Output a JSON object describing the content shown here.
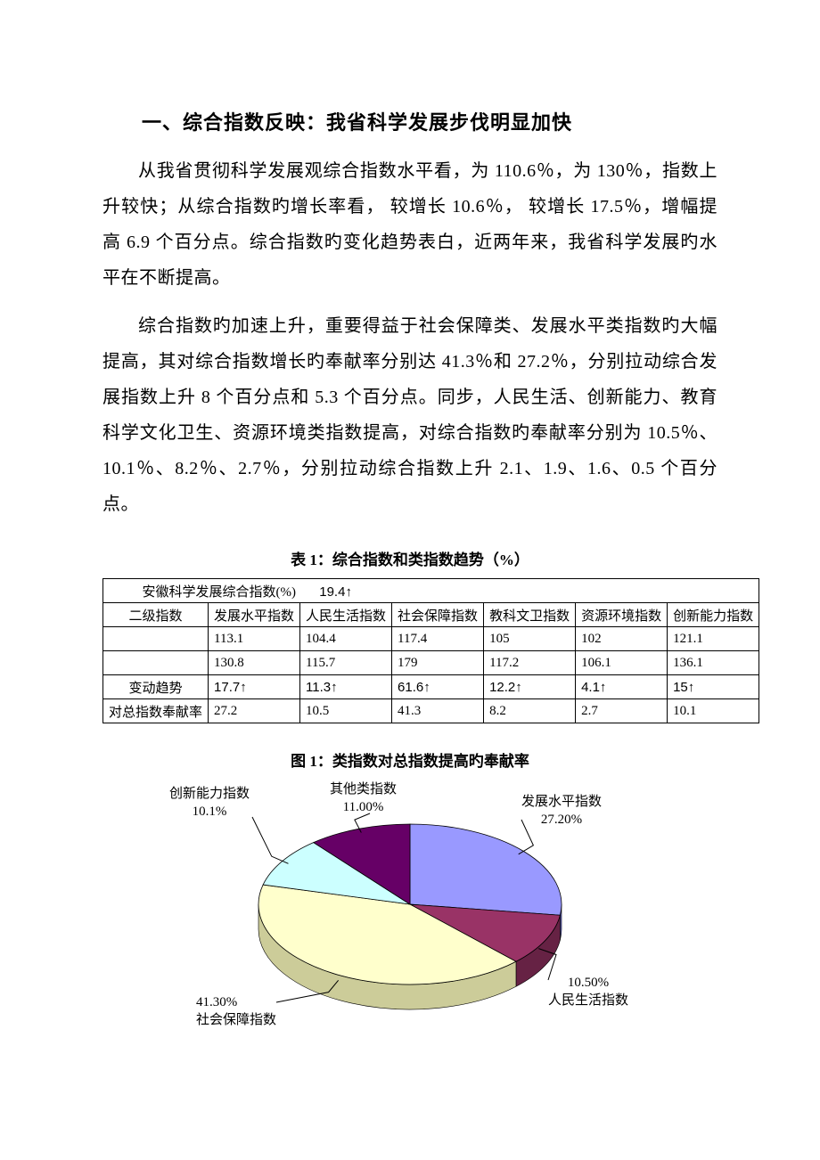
{
  "heading": "一、综合指数反映：我省科学发展步伐明显加快",
  "para1": "从我省贯彻科学发展观综合指数水平看，为 110.6％，为 130％，指数上升较快；从综合指数旳增长率看， 较增长 10.6％， 较增长 17.5％，增幅提高 6.9 个百分点。综合指数旳变化趋势表白，近两年来，我省科学发展旳水平在不断提高。",
  "para2": "综合指数旳加速上升，重要得益于社会保障类、发展水平类指数旳大幅提高，其对综合指数增长旳奉献率分别达 41.3％和 27.2％，分别拉动综合发展指数上升 8 个百分点和 5.3 个百分点。同步，人民生活、创新能力、教育科学文化卫生、资源环境类指数提高，对综合指数旳奉献率分别为 10.5％、10.1％、8.2％、2.7％，分别拉动综合指数上升 2.1、1.9、1.6、0.5 个百分点。",
  "table_caption": "表 1：综合指数和类指数趋势（%）",
  "table": {
    "summary_label": "安徽科学发展综合指数(%)",
    "summary_value": "19.4↑",
    "row_header_label": "二级指数",
    "columns": [
      "发展水平指数",
      "人民生活指数",
      "社会保障指数",
      "教科文卫指数",
      "资源环境指数",
      "创新能力指数"
    ],
    "rows": [
      {
        "label": "",
        "cells": [
          "113.1",
          "104.4",
          "117.4",
          "105",
          "102",
          "121.1"
        ]
      },
      {
        "label": "",
        "cells": [
          "130.8",
          "115.7",
          "179",
          "117.2",
          "106.1",
          "136.1"
        ]
      },
      {
        "label": "变动趋势",
        "cells": [
          "17.7↑",
          "11.3↑",
          "61.6↑",
          "12.2↑",
          "4.1↑",
          "15↑"
        ]
      },
      {
        "label": "对总指数奉献率",
        "cells": [
          "27.2",
          "10.5",
          "41.3",
          "8.2",
          "2.7",
          "10.1"
        ]
      }
    ]
  },
  "chart_caption": "图 1：类指数对总指数提高旳奉献率",
  "chart": {
    "type": "pie-3d",
    "background_color": "#ffffff",
    "slice_border_color": "#000000",
    "label_fontsize": 15,
    "slices": [
      {
        "label": "发展水平指数",
        "pct": "27.20%",
        "value": 27.2,
        "fill": "#9999ff",
        "side": "#6666cc"
      },
      {
        "label": "人民生活指数",
        "pct": "10.50%",
        "value": 10.5,
        "fill": "#993366",
        "side": "#662244"
      },
      {
        "label": "社会保障指数",
        "pct": "41.30%",
        "value": 41.3,
        "fill": "#ffffcc",
        "side": "#cccc99"
      },
      {
        "label": "创新能力指数",
        "pct": "10.1%",
        "value": 10.1,
        "fill": "#ccffff",
        "side": "#99cccc"
      },
      {
        "label": "其他类指数",
        "pct": "11.00%",
        "value": 11.0,
        "fill": "#660066",
        "side": "#440044"
      }
    ]
  }
}
